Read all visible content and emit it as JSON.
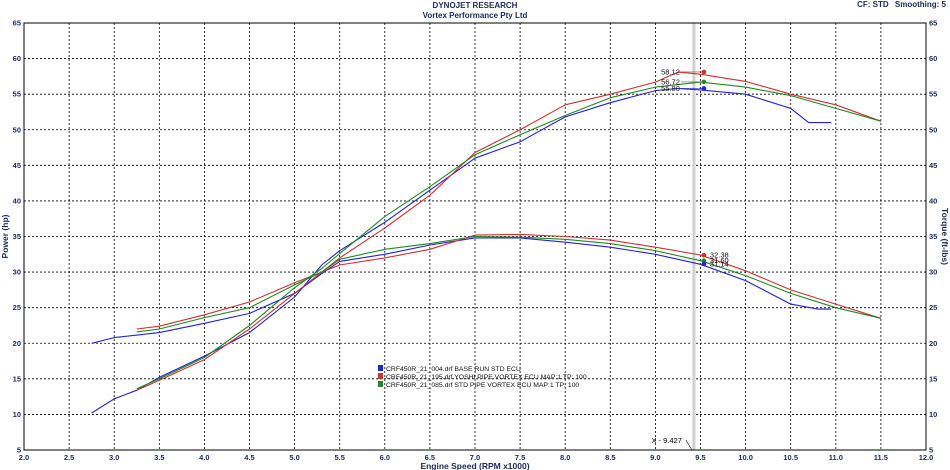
{
  "header": {
    "company": "DYNOJET RESEARCH",
    "customer": "Vortex Performance Pty Ltd",
    "cf_label": "CF: STD",
    "smoothing_label": "Smoothing: 5"
  },
  "colors": {
    "base": "#2222d0",
    "yoshi": "#d03030",
    "std": "#228822",
    "axis_text": "#1a2a5a",
    "cursor": "#bbbbbb"
  },
  "chart_data": {
    "type": "line",
    "xlabel": "Engine Speed (RPM x1000)",
    "ylabel": "Power (hp)",
    "ylabel_right": "Torque (ft-lbs)",
    "xlim": [
      2.0,
      12.0
    ],
    "ylim": [
      5,
      65
    ],
    "x_ticks": [
      "2.0",
      "2.5",
      "3.0",
      "3.5",
      "4.0",
      "4.5",
      "5.0",
      "5.5",
      "6.0",
      "6.5",
      "7.0",
      "7.5",
      "8.0",
      "8.5",
      "9.0",
      "9.5",
      "10.0",
      "10.5",
      "11.0",
      "11.5",
      "12.0"
    ],
    "y_ticks": [
      "5",
      "10",
      "15",
      "20",
      "25",
      "30",
      "35",
      "40",
      "45",
      "50",
      "55",
      "60",
      "65"
    ],
    "grid": true,
    "cursor": {
      "x": 9.427,
      "label": "X - 9.427"
    },
    "legend": [
      {
        "text": "CRF450R_21_004.drf BASE RUN STD ECU",
        "color_key": "base"
      },
      {
        "text": "CRF450R_21_195.drf YOSHI PIPE VORTEX  ECU MAP:1 TP: 100",
        "color_key": "yoshi"
      },
      {
        "text": "CRF450R_21_085.drf STD PIPE VORTEX  ECU MAP:1 TP: 100",
        "color_key": "std"
      }
    ],
    "cursor_values": [
      {
        "value": "58.12",
        "y": 58.12,
        "color_key": "yoshi",
        "side": "left"
      },
      {
        "value": "56.72",
        "y": 56.72,
        "color_key": "std",
        "side": "left"
      },
      {
        "value": "55.80",
        "y": 55.8,
        "color_key": "base",
        "side": "left"
      },
      {
        "value": "32.38",
        "y": 32.38,
        "color_key": "yoshi",
        "side": "right"
      },
      {
        "value": "31.60",
        "y": 31.6,
        "color_key": "std",
        "side": "right"
      },
      {
        "value": "31.14",
        "y": 31.14,
        "color_key": "base",
        "side": "right"
      }
    ],
    "series": [
      {
        "name": "CRF450R_21_004.drf BASE RUN STD ECU (Power)",
        "color_key": "base",
        "x": [
          2.75,
          3.0,
          3.25,
          3.5,
          4.0,
          4.5,
          5.0,
          5.3,
          5.5,
          6.0,
          6.5,
          7.0,
          7.5,
          8.0,
          8.5,
          9.0,
          9.25,
          9.5,
          10.0,
          10.5,
          10.7,
          10.95
        ],
        "y": [
          10.2,
          12.2,
          13.4,
          15.2,
          18.2,
          21.5,
          26.5,
          31.0,
          33.0,
          37.0,
          41.5,
          46.0,
          48.3,
          51.8,
          53.8,
          55.5,
          55.8,
          55.6,
          55.0,
          53.0,
          51.0,
          51.0
        ]
      },
      {
        "name": "CRF450R_21_004.drf BASE RUN STD ECU (Torque)",
        "color_key": "base",
        "x": [
          2.75,
          3.0,
          3.5,
          4.0,
          4.5,
          5.0,
          5.3,
          5.5,
          6.0,
          6.5,
          7.0,
          7.5,
          8.0,
          8.5,
          9.0,
          9.5,
          10.0,
          10.5,
          10.8,
          10.95
        ],
        "y": [
          20.0,
          20.8,
          21.5,
          22.8,
          24.2,
          27.0,
          29.8,
          31.5,
          32.5,
          33.8,
          34.8,
          34.8,
          34.2,
          33.5,
          32.5,
          31.1,
          28.8,
          25.5,
          24.8,
          24.8
        ]
      },
      {
        "name": "CRF450R_21_195.drf YOSHI PIPE VORTEX (Power)",
        "color_key": "yoshi",
        "x": [
          3.25,
          3.5,
          4.0,
          4.5,
          5.0,
          5.3,
          5.5,
          6.0,
          6.5,
          7.0,
          7.5,
          8.0,
          8.5,
          9.0,
          9.25,
          9.5,
          10.0,
          10.5,
          11.0,
          11.5
        ],
        "y": [
          13.4,
          14.8,
          17.7,
          22.0,
          27.0,
          30.0,
          32.0,
          36.2,
          40.8,
          46.8,
          50.0,
          53.5,
          55.0,
          56.7,
          58.1,
          57.8,
          56.8,
          55.0,
          53.5,
          51.2
        ]
      },
      {
        "name": "CRF450R_21_195.drf YOSHI PIPE VORTEX (Torque)",
        "color_key": "yoshi",
        "x": [
          3.25,
          3.5,
          4.0,
          4.5,
          5.0,
          5.3,
          5.5,
          6.0,
          6.5,
          7.0,
          7.5,
          8.0,
          8.5,
          9.0,
          9.5,
          10.0,
          10.5,
          11.0,
          11.5
        ],
        "y": [
          22.0,
          22.4,
          24.0,
          25.8,
          28.5,
          30.0,
          31.0,
          32.0,
          33.2,
          35.2,
          35.3,
          35.0,
          34.5,
          33.5,
          32.4,
          30.2,
          27.5,
          25.5,
          23.5
        ]
      },
      {
        "name": "CRF450R_21_085.drf STD PIPE VORTEX (Power)",
        "color_key": "std",
        "x": [
          3.25,
          3.5,
          4.0,
          4.5,
          5.0,
          5.3,
          5.5,
          6.0,
          6.5,
          7.0,
          7.5,
          8.0,
          8.5,
          9.0,
          9.5,
          10.0,
          10.5,
          11.0,
          11.5
        ],
        "y": [
          13.6,
          15.0,
          18.0,
          22.5,
          27.8,
          30.5,
          32.6,
          37.8,
          42.0,
          46.5,
          49.3,
          52.0,
          54.5,
          56.0,
          56.7,
          56.0,
          54.8,
          53.0,
          51.2
        ]
      },
      {
        "name": "CRF450R_21_085.drf STD PIPE VORTEX (Torque)",
        "color_key": "std",
        "x": [
          3.25,
          3.5,
          4.0,
          4.5,
          5.0,
          5.3,
          5.5,
          6.0,
          6.5,
          7.0,
          7.5,
          8.0,
          8.5,
          9.0,
          9.5,
          10.0,
          10.5,
          11.0,
          11.5
        ],
        "y": [
          21.6,
          22.0,
          23.6,
          25.0,
          28.2,
          30.0,
          31.8,
          33.2,
          34.0,
          35.0,
          34.9,
          34.6,
          34.0,
          33.0,
          31.6,
          29.5,
          27.0,
          25.0,
          23.5
        ]
      }
    ]
  }
}
